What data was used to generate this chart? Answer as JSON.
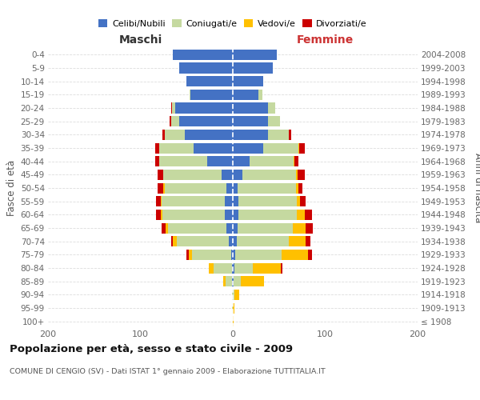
{
  "age_groups": [
    "100+",
    "95-99",
    "90-94",
    "85-89",
    "80-84",
    "75-79",
    "70-74",
    "65-69",
    "60-64",
    "55-59",
    "50-54",
    "45-49",
    "40-44",
    "35-39",
    "30-34",
    "25-29",
    "20-24",
    "15-19",
    "10-14",
    "5-9",
    "0-4"
  ],
  "birth_years": [
    "≤ 1908",
    "1909-1913",
    "1914-1918",
    "1919-1923",
    "1924-1928",
    "1929-1933",
    "1934-1938",
    "1939-1943",
    "1944-1948",
    "1949-1953",
    "1954-1958",
    "1959-1963",
    "1964-1968",
    "1969-1973",
    "1974-1978",
    "1979-1983",
    "1984-1988",
    "1989-1993",
    "1994-1998",
    "1999-2003",
    "2004-2008"
  ],
  "males_celibe": [
    0,
    0,
    0,
    1,
    1,
    2,
    4,
    7,
    9,
    9,
    7,
    12,
    28,
    42,
    52,
    58,
    62,
    46,
    50,
    58,
    65
  ],
  "males_coniugato": [
    0,
    1,
    1,
    7,
    20,
    42,
    57,
    63,
    67,
    68,
    67,
    63,
    52,
    38,
    22,
    9,
    4,
    1,
    0,
    0,
    0
  ],
  "males_vedovo": [
    0,
    0,
    0,
    2,
    5,
    4,
    4,
    3,
    2,
    1,
    1,
    0,
    0,
    0,
    0,
    0,
    0,
    0,
    0,
    0,
    0
  ],
  "males_divorziato": [
    0,
    0,
    0,
    0,
    0,
    2,
    2,
    4,
    5,
    5,
    6,
    6,
    4,
    4,
    2,
    1,
    1,
    0,
    0,
    0,
    0
  ],
  "females_nubile": [
    0,
    0,
    0,
    1,
    2,
    3,
    4,
    5,
    6,
    6,
    5,
    10,
    18,
    33,
    38,
    38,
    38,
    28,
    33,
    43,
    48
  ],
  "females_coniugata": [
    0,
    0,
    2,
    8,
    20,
    50,
    57,
    60,
    63,
    63,
    63,
    58,
    48,
    38,
    23,
    13,
    8,
    4,
    0,
    0,
    0
  ],
  "females_vedova": [
    1,
    2,
    5,
    25,
    30,
    28,
    18,
    14,
    9,
    4,
    3,
    2,
    1,
    1,
    0,
    0,
    0,
    0,
    0,
    0,
    0
  ],
  "females_divorziata": [
    0,
    0,
    0,
    0,
    2,
    5,
    5,
    8,
    8,
    6,
    4,
    8,
    4,
    6,
    2,
    0,
    0,
    0,
    0,
    0,
    0
  ],
  "color_celibe": "#4472c4",
  "color_coniugato": "#c5d9a0",
  "color_vedovo": "#ffc000",
  "color_divorziato": "#cc0000",
  "title": "Popolazione per età, sesso e stato civile - 2009",
  "subtitle": "COMUNE DI CENGIO (SV) - Dati ISTAT 1° gennaio 2009 - Elaborazione TUTTITALIA.IT",
  "label_maschi": "Maschi",
  "label_femmine": "Femmine",
  "label_fasce": "Fasce di età",
  "label_anni": "Anni di nascita",
  "legend_labels": [
    "Celibi/Nubili",
    "Coniugati/e",
    "Vedovi/e",
    "Divorziati/e"
  ],
  "xlim": 200,
  "background": "#ffffff",
  "grid_color": "#dddddd"
}
